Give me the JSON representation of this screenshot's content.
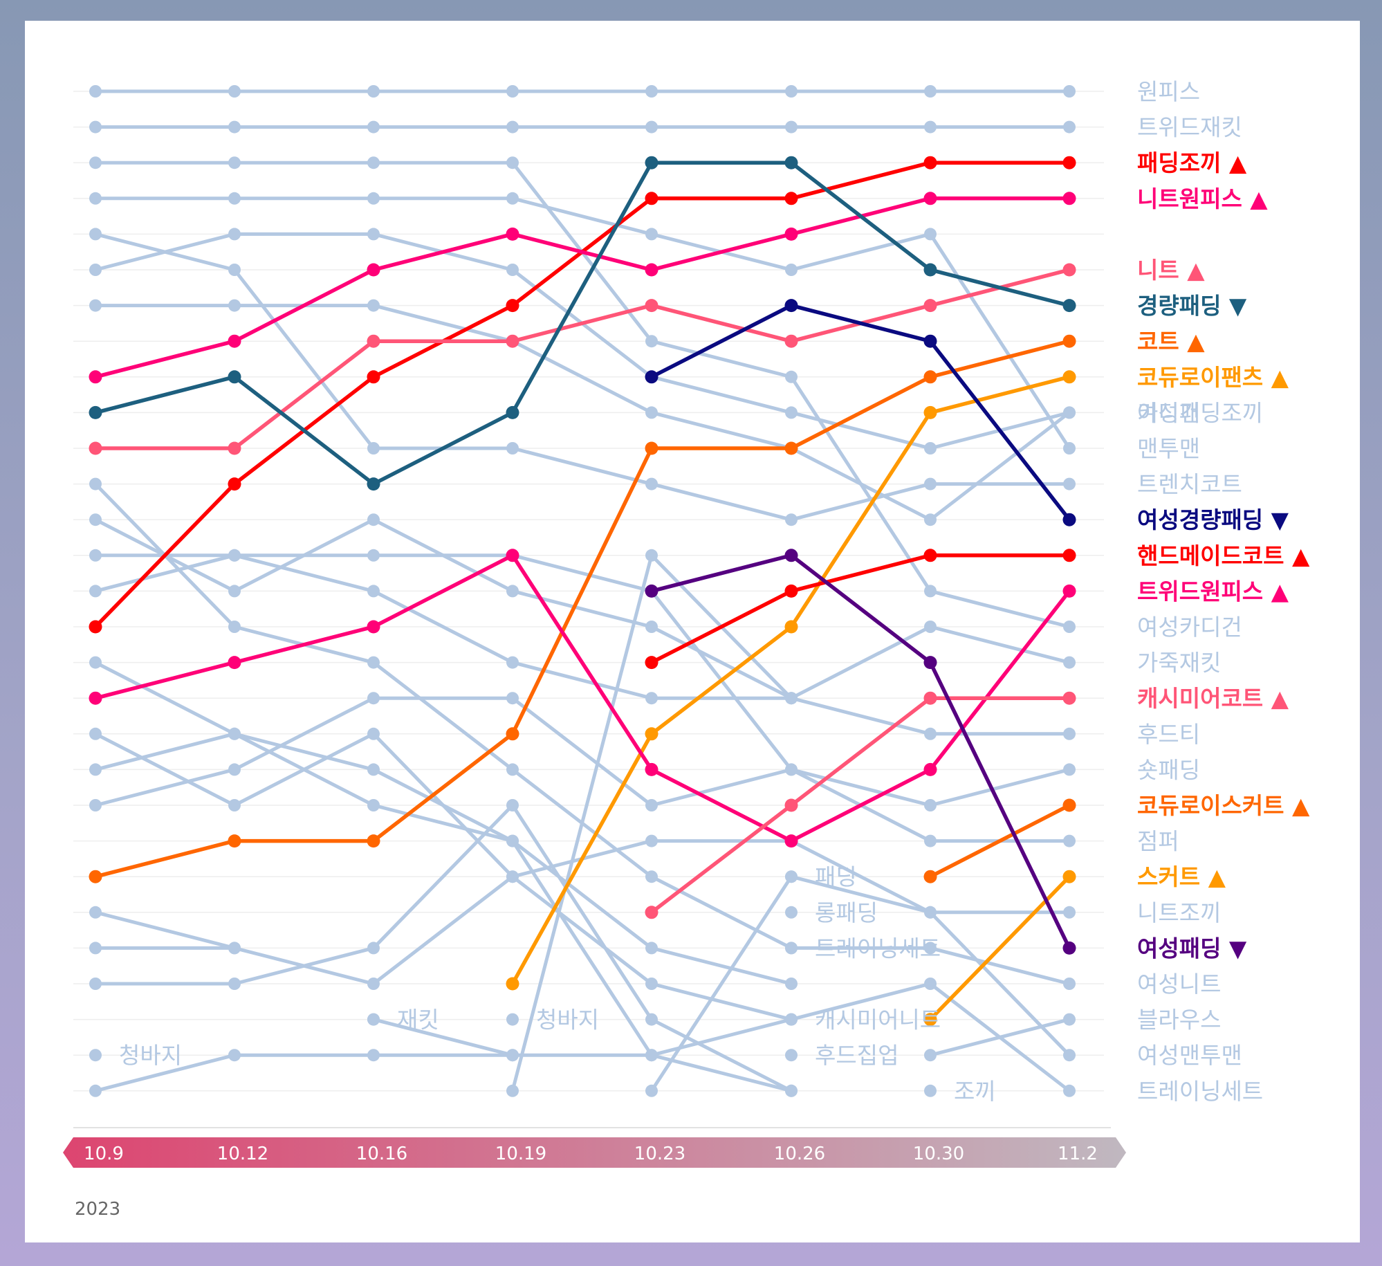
{
  "chart_data": {
    "type": "line",
    "subtype": "bump-chart",
    "x": [
      "10.9",
      "10.12",
      "10.16",
      "10.19",
      "10.23",
      "10.26",
      "10.30",
      "11.2"
    ],
    "year": "2023",
    "y_axis": "rank",
    "ylim": [
      1,
      29
    ],
    "grid": true,
    "colors": {
      "grey": "#b3c8e2",
      "red": "#ff0000",
      "pink": "#ff0077",
      "salmon": "#ff5577",
      "teal": "#1d5f7f",
      "navy": "#0a0a80",
      "orange": "#ff6600",
      "amber": "#ff9900",
      "purple": "#550080",
      "axis_start": "#dd4570",
      "axis_end": "#c0b8c0"
    },
    "series": [
      {
        "name": "원피스",
        "ranks": [
          1,
          1,
          1,
          1,
          1,
          1,
          1,
          1
        ],
        "color": "grey",
        "marker": ""
      },
      {
        "name": "트위드재킷",
        "ranks": [
          2,
          2,
          2,
          2,
          2,
          2,
          2,
          2
        ],
        "color": "grey",
        "marker": ""
      },
      {
        "name": "패딩조끼",
        "ranks": [
          16,
          12,
          9,
          7,
          4,
          4,
          3,
          3
        ],
        "color": "red",
        "marker": "▲"
      },
      {
        "name": "니트원피스",
        "ranks": [
          9,
          8,
          6,
          5,
          6,
          5,
          4,
          4
        ],
        "color": "pink",
        "marker": "▲"
      },
      {
        "name": "카디건",
        "ranks": [
          6,
          5,
          5,
          6,
          9,
          10,
          11,
          10
        ],
        "color": "grey",
        "marker": ""
      },
      {
        "name": "니트",
        "ranks": [
          11,
          11,
          8,
          8,
          7,
          8,
          7,
          6
        ],
        "color": "salmon",
        "marker": "▲"
      },
      {
        "name": "경량패딩",
        "ranks": [
          10,
          9,
          12,
          10,
          3,
          3,
          6,
          7
        ],
        "color": "teal",
        "marker": "▼"
      },
      {
        "name": "코트",
        "ranks": [
          23,
          22,
          22,
          19,
          11,
          11,
          9,
          8
        ],
        "color": "orange",
        "marker": "▲"
      },
      {
        "name": "코듀로이팬츠",
        "ranks": [
          null,
          null,
          null,
          26,
          19,
          16,
          10,
          9
        ],
        "color": "amber",
        "marker": "▲"
      },
      {
        "name": "여성패딩조끼",
        "ranks": [
          7,
          7,
          7,
          8,
          10,
          11,
          13,
          10
        ],
        "color": "grey",
        "marker": ""
      },
      {
        "name": "맨투맨",
        "ranks": [
          4,
          4,
          4,
          4,
          5,
          6,
          5,
          11
        ],
        "color": "grey",
        "marker": ""
      },
      {
        "name": "트렌치코트",
        "ranks": [
          5,
          6,
          11,
          11,
          12,
          13,
          12,
          12
        ],
        "color": "grey",
        "marker": ""
      },
      {
        "name": "여성경량패딩",
        "ranks": [
          null,
          null,
          null,
          null,
          9,
          7,
          8,
          13
        ],
        "color": "navy",
        "marker": "▼"
      },
      {
        "name": "핸드메이드코트",
        "ranks": [
          null,
          null,
          null,
          null,
          17,
          15,
          14,
          14
        ],
        "color": "red",
        "marker": "▲"
      },
      {
        "name": "트위드원피스",
        "ranks": [
          18,
          17,
          16,
          14,
          20,
          22,
          20,
          15
        ],
        "color": "pink",
        "marker": "▲"
      },
      {
        "name": "여성카디건",
        "ranks": [
          3,
          3,
          3,
          3,
          8,
          9,
          15,
          16
        ],
        "color": "grey",
        "marker": ""
      },
      {
        "name": "가죽재킷",
        "ranks": [
          13,
          15,
          13,
          15,
          16,
          18,
          16,
          17
        ],
        "color": "grey",
        "marker": ""
      },
      {
        "name": "캐시미어코트",
        "ranks": [
          null,
          null,
          null,
          null,
          24,
          21,
          18,
          18
        ],
        "color": "salmon",
        "marker": "▲"
      },
      {
        "name": "후드티",
        "ranks": [
          14,
          14,
          15,
          17,
          18,
          18,
          19,
          19
        ],
        "color": "grey",
        "marker": ""
      },
      {
        "name": "숏패딩",
        "ranks": [
          21,
          20,
          18,
          18,
          21,
          20,
          21,
          20
        ],
        "color": "grey",
        "marker": ""
      },
      {
        "name": "코듀로이스커트",
        "ranks": [
          null,
          null,
          null,
          null,
          null,
          null,
          23,
          21
        ],
        "color": "orange",
        "marker": "▲"
      },
      {
        "name": "점퍼",
        "ranks": [
          15,
          14,
          14,
          14,
          15,
          20,
          22,
          22
        ],
        "color": "grey",
        "marker": ""
      },
      {
        "name": "스커트",
        "ranks": [
          null,
          null,
          null,
          null,
          null,
          null,
          27,
          23
        ],
        "color": "amber",
        "marker": "▲"
      },
      {
        "name": "니트조끼",
        "ranks": [
          null,
          null,
          null,
          null,
          29,
          23,
          24,
          24
        ],
        "color": "grey",
        "marker": ""
      },
      {
        "name": "여성패딩",
        "ranks": [
          null,
          null,
          null,
          null,
          15,
          14,
          17,
          25
        ],
        "color": "purple",
        "marker": "▼"
      },
      {
        "name": "여성니트",
        "ranks": [
          12,
          16,
          17,
          20,
          23,
          25,
          25,
          26
        ],
        "color": "grey",
        "marker": ""
      },
      {
        "name": "블라우스",
        "ranks": [
          null,
          null,
          null,
          null,
          null,
          null,
          28,
          27
        ],
        "color": "grey",
        "marker": ""
      },
      {
        "name": "여성맨투맨",
        "ranks": [
          25,
          25,
          26,
          23,
          22,
          22,
          24,
          28
        ],
        "color": "grey",
        "marker": ""
      },
      {
        "name": "트레이닝세트",
        "ranks": [
          19,
          21,
          19,
          23,
          26,
          27,
          26,
          29
        ],
        "color": "grey",
        "marker": ""
      },
      {
        "name": "패딩",
        "ranks": [
          17,
          19,
          20,
          22,
          25,
          26,
          null,
          null
        ],
        "color": "grey",
        "marker": ""
      },
      {
        "name": "롱패딩",
        "ranks": [
          null,
          null,
          null,
          29,
          14,
          18,
          null,
          null
        ],
        "color": "grey",
        "marker": ""
      },
      {
        "name": "트레이닝세트",
        "ranks": [
          26,
          26,
          25,
          21,
          27,
          29,
          null,
          null
        ],
        "color": "grey",
        "marker": ""
      },
      {
        "name": "캐시미어니트",
        "ranks": [
          20,
          19,
          21,
          22,
          28,
          29,
          null,
          null
        ],
        "color": "grey",
        "marker": ""
      },
      {
        "name": "후드집업",
        "ranks": [
          29,
          28,
          28,
          28,
          28,
          27,
          null,
          null
        ],
        "color": "grey",
        "marker": ""
      },
      {
        "name": "재킷",
        "ranks": [
          24,
          25,
          null,
          null,
          null,
          null,
          null,
          null
        ],
        "color": "grey",
        "marker": ""
      },
      {
        "name": "청바지",
        "ranks": [
          null,
          null,
          27,
          28,
          null,
          null,
          null,
          null
        ],
        "color": "grey",
        "marker": ""
      }
    ],
    "dropped_labels": [
      {
        "text": "청바지",
        "x": "10.9",
        "rank": 28
      },
      {
        "text": "재킷",
        "x": "10.16",
        "rank": 27
      },
      {
        "text": "청바지",
        "x": "10.19",
        "rank": 27
      },
      {
        "text": "패딩",
        "x": "10.26",
        "rank": 23
      },
      {
        "text": "롱패딩",
        "x": "10.26",
        "rank": 24
      },
      {
        "text": "트레이닝세트",
        "x": "10.26",
        "rank": 25
      },
      {
        "text": "캐시미어니트",
        "x": "10.26",
        "rank": 27
      },
      {
        "text": "후드집업",
        "x": "10.26",
        "rank": 28
      },
      {
        "text": "조끼",
        "x": "10.30",
        "rank": 29
      }
    ]
  }
}
